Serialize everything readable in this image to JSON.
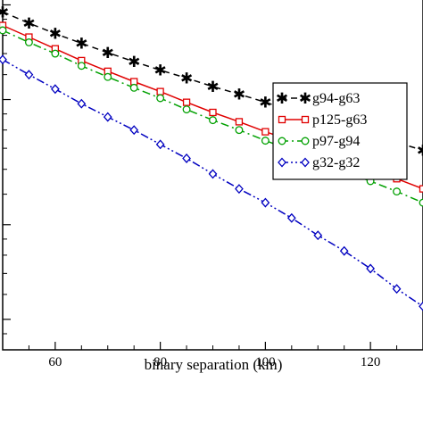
{
  "chart_data": {
    "type": "line",
    "title": "",
    "xlabel": "binary separation (km)",
    "ylabel": "",
    "xlim": [
      50,
      130
    ],
    "ylim": [
      0,
      1
    ],
    "yscale": "log",
    "grid": false,
    "legend_position": "top-right",
    "x_ticks": [
      60,
      80,
      100,
      120
    ],
    "x_tick_labels": [
      "60",
      "80",
      "100",
      "120"
    ],
    "x": [
      50,
      55,
      60,
      65,
      70,
      75,
      80,
      85,
      90,
      95,
      100,
      105,
      110,
      115,
      120,
      125,
      130
    ],
    "series": [
      {
        "name": "g94-g63",
        "color": "#000000",
        "line_style": "dashed",
        "marker": "star",
        "values": [
          0.95,
          0.875,
          0.81,
          0.755,
          0.705,
          0.66,
          0.62,
          0.585,
          0.55,
          0.52,
          0.49,
          0.46,
          0.435,
          0.41,
          0.385,
          0.365,
          0.345
        ]
      },
      {
        "name": "p125-g63",
        "color": "#e00000",
        "line_style": "solid",
        "marker": "square",
        "values": [
          0.86,
          0.79,
          0.725,
          0.665,
          0.615,
          0.57,
          0.53,
          0.49,
          0.455,
          0.425,
          0.395,
          0.37,
          0.345,
          0.32,
          0.3,
          0.28,
          0.26
        ]
      },
      {
        "name": "p97-g94",
        "color": "#00a000",
        "line_style": "dashdot",
        "marker": "circle",
        "values": [
          0.83,
          0.76,
          0.7,
          0.64,
          0.59,
          0.545,
          0.505,
          0.465,
          0.43,
          0.4,
          0.37,
          0.345,
          0.32,
          0.295,
          0.275,
          0.255,
          0.235
        ]
      },
      {
        "name": "g32-g32",
        "color": "#0000c0",
        "line_style": "dashdotdot",
        "marker": "diamond",
        "values": [
          0.67,
          0.6,
          0.54,
          0.485,
          0.44,
          0.4,
          0.36,
          0.325,
          0.29,
          0.26,
          0.235,
          0.21,
          0.185,
          0.165,
          0.145,
          0.125,
          0.11
        ]
      }
    ]
  }
}
